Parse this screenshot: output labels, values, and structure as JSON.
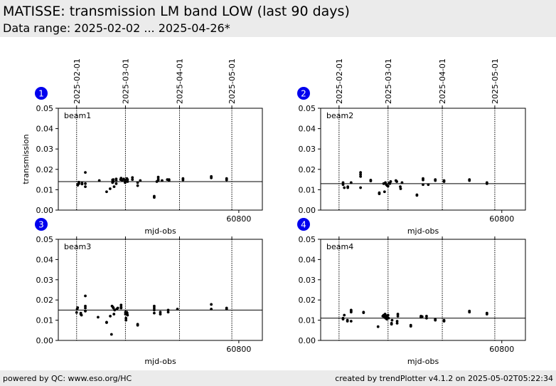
{
  "header": {
    "title": "MATISSE: transmission LM band LOW (last 90 days)",
    "subtitle": "Data range: 2025-02-02 ... 2025-04-26*"
  },
  "footer": {
    "left": "powered by QC: www.eso.org/HC",
    "right": "created by trendPlotter v4.1.2 on 2025-05-02T05:22:34"
  },
  "chart_data": [
    {
      "type": "scatter",
      "panel_number": "1",
      "label": "beam1",
      "xlabel": "mjd-obs",
      "ylabel": "transmission",
      "xlim": [
        60696.5,
        60813.5
      ],
      "ylim": [
        0.0,
        0.05
      ],
      "y_ticks": [
        "0.00",
        "0.01",
        "0.02",
        "0.03",
        "0.04",
        "0.05"
      ],
      "x_ticks": [
        60800
      ],
      "x_tick_labels": [
        "60800"
      ],
      "date_markers": [
        {
          "mjd": 60707,
          "label": "2025-02-01"
        },
        {
          "mjd": 60735,
          "label": "2025-03-01"
        },
        {
          "mjd": 60766,
          "label": "2025-04-01"
        },
        {
          "mjd": 60796,
          "label": "2025-05-01"
        }
      ],
      "reference_line": 0.014,
      "points": [
        [
          60707.6,
          0.0126
        ],
        [
          60707.6,
          0.0122
        ],
        [
          60708.3,
          0.0137
        ],
        [
          60708.3,
          0.013
        ],
        [
          60710.1,
          0.0128
        ],
        [
          60710.1,
          0.0132
        ],
        [
          60712.0,
          0.0185
        ],
        [
          60712.0,
          0.0115
        ],
        [
          60712.0,
          0.013
        ],
        [
          60720.0,
          0.0145
        ],
        [
          60724.2,
          0.009
        ],
        [
          60726.2,
          0.0105
        ],
        [
          60727.6,
          0.0148
        ],
        [
          60727.6,
          0.0138
        ],
        [
          60727.6,
          0.0135
        ],
        [
          60728.0,
          0.015
        ],
        [
          60728.0,
          0.014
        ],
        [
          60728.5,
          0.0115
        ],
        [
          60729.7,
          0.0153
        ],
        [
          60729.7,
          0.0145
        ],
        [
          60729.7,
          0.013
        ],
        [
          60732.2,
          0.015
        ],
        [
          60732.5,
          0.0157
        ],
        [
          60733.2,
          0.0145
        ],
        [
          60734.0,
          0.0153
        ],
        [
          60734.8,
          0.0145
        ],
        [
          60734.8,
          0.0135
        ],
        [
          60735.8,
          0.0155
        ],
        [
          60736.2,
          0.015
        ],
        [
          60736.2,
          0.014
        ],
        [
          60739.0,
          0.016
        ],
        [
          60739.0,
          0.015
        ],
        [
          60742.0,
          0.0135
        ],
        [
          60742.0,
          0.012
        ],
        [
          60743.5,
          0.0145
        ],
        [
          60751.5,
          0.0068
        ],
        [
          60751.5,
          0.0062
        ],
        [
          60753.0,
          0.014
        ],
        [
          60753.8,
          0.0162
        ],
        [
          60753.8,
          0.0152
        ],
        [
          60753.8,
          0.0145
        ],
        [
          60756.0,
          0.0145
        ],
        [
          60759.0,
          0.015
        ],
        [
          60760.0,
          0.015
        ],
        [
          60760.0,
          0.0145
        ],
        [
          60768.0,
          0.0155
        ],
        [
          60768.0,
          0.0148
        ],
        [
          60784.2,
          0.0165
        ],
        [
          60784.2,
          0.0158
        ],
        [
          60793.0,
          0.0155
        ],
        [
          60793.0,
          0.0148
        ]
      ]
    },
    {
      "type": "scatter",
      "panel_number": "2",
      "label": "beam2",
      "xlabel": "mjd-obs",
      "ylabel": "",
      "xlim": [
        60696.5,
        60813.5
      ],
      "ylim": [
        0.0,
        0.05
      ],
      "y_ticks": [
        "0.00",
        "0.01",
        "0.02",
        "0.03",
        "0.04",
        "0.05"
      ],
      "x_ticks": [
        60800
      ],
      "x_tick_labels": [
        "60800"
      ],
      "date_markers": [
        {
          "mjd": 60707,
          "label": "2025-02-01"
        },
        {
          "mjd": 60735,
          "label": "2025-03-01"
        },
        {
          "mjd": 60766,
          "label": "2025-04-01"
        },
        {
          "mjd": 60796,
          "label": "2025-05-01"
        }
      ],
      "reference_line": 0.013,
      "points": [
        [
          60709.3,
          0.0135
        ],
        [
          60709.3,
          0.0125
        ],
        [
          60710.0,
          0.011
        ],
        [
          60712.0,
          0.0115
        ],
        [
          60712.0,
          0.011
        ],
        [
          60713.9,
          0.0135
        ],
        [
          60719.3,
          0.0185
        ],
        [
          60719.3,
          0.0175
        ],
        [
          60719.3,
          0.0165
        ],
        [
          60719.3,
          0.011
        ],
        [
          60725.1,
          0.0147
        ],
        [
          60725.1,
          0.0143
        ],
        [
          60730.0,
          0.0085
        ],
        [
          60730.0,
          0.008
        ],
        [
          60732.5,
          0.013
        ],
        [
          60733.0,
          0.009
        ],
        [
          60733.5,
          0.0135
        ],
        [
          60734.0,
          0.0125
        ],
        [
          60734.5,
          0.012
        ],
        [
          60735.0,
          0.0118
        ],
        [
          60735.5,
          0.0132
        ],
        [
          60736.0,
          0.013
        ],
        [
          60736.5,
          0.014
        ],
        [
          60739.5,
          0.0145
        ],
        [
          60740.0,
          0.014
        ],
        [
          60742.0,
          0.0115
        ],
        [
          60742.2,
          0.0105
        ],
        [
          60743.0,
          0.0135
        ],
        [
          60751.5,
          0.0075
        ],
        [
          60751.5,
          0.0072
        ],
        [
          60755.0,
          0.0155
        ],
        [
          60755.0,
          0.0148
        ],
        [
          60755.0,
          0.0125
        ],
        [
          60758.0,
          0.0125
        ],
        [
          60762.0,
          0.015
        ],
        [
          60762.0,
          0.0145
        ],
        [
          60767.0,
          0.0145
        ],
        [
          60767.0,
          0.014
        ],
        [
          60781.5,
          0.015
        ],
        [
          60781.5,
          0.0145
        ],
        [
          60791.5,
          0.0135
        ],
        [
          60791.5,
          0.013
        ]
      ]
    },
    {
      "type": "scatter",
      "panel_number": "3",
      "label": "beam3",
      "xlabel": "mjd-obs",
      "ylabel": "",
      "xlim": [
        60696.5,
        60813.5
      ],
      "ylim": [
        0.0,
        0.05
      ],
      "y_ticks": [
        "0.00",
        "0.01",
        "0.02",
        "0.03",
        "0.04",
        "0.05"
      ],
      "x_ticks": [
        60800
      ],
      "x_tick_labels": [
        "60800"
      ],
      "date_markers": [
        {
          "mjd": 60707,
          "label": "2025-02-01"
        },
        {
          "mjd": 60735,
          "label": "2025-03-01"
        },
        {
          "mjd": 60766,
          "label": "2025-04-01"
        },
        {
          "mjd": 60796,
          "label": "2025-05-01"
        }
      ],
      "reference_line": 0.015,
      "points": [
        [
          60707.0,
          0.0138
        ],
        [
          60707.3,
          0.0155
        ],
        [
          60707.6,
          0.0162
        ],
        [
          60709.4,
          0.013
        ],
        [
          60709.4,
          0.0135
        ],
        [
          60709.8,
          0.0125
        ],
        [
          60712.0,
          0.022
        ],
        [
          60712.0,
          0.017
        ],
        [
          60712.0,
          0.016
        ],
        [
          60712.0,
          0.0145
        ],
        [
          60719.3,
          0.0115
        ],
        [
          60724.2,
          0.009
        ],
        [
          60724.2,
          0.0088
        ],
        [
          60726.3,
          0.012
        ],
        [
          60727.0,
          0.003
        ],
        [
          60727.3,
          0.017
        ],
        [
          60727.8,
          0.0165
        ],
        [
          60728.1,
          0.016
        ],
        [
          60728.4,
          0.013
        ],
        [
          60728.8,
          0.015
        ],
        [
          60730.0,
          0.0155
        ],
        [
          60730.6,
          0.016
        ],
        [
          60732.5,
          0.0175
        ],
        [
          60732.5,
          0.0165
        ],
        [
          60732.5,
          0.016
        ],
        [
          60735.0,
          0.014
        ],
        [
          60735.0,
          0.013
        ],
        [
          60735.3,
          0.011
        ],
        [
          60735.3,
          0.01
        ],
        [
          60735.7,
          0.014
        ],
        [
          60736.0,
          0.0135
        ],
        [
          60736.2,
          0.0125
        ],
        [
          60742.0,
          0.008
        ],
        [
          60742.0,
          0.0075
        ],
        [
          60751.5,
          0.017
        ],
        [
          60751.5,
          0.016
        ],
        [
          60751.5,
          0.015
        ],
        [
          60751.5,
          0.0135
        ],
        [
          60755.0,
          0.014
        ],
        [
          60755.0,
          0.013
        ],
        [
          60759.5,
          0.015
        ],
        [
          60759.5,
          0.014
        ],
        [
          60764.8,
          0.0155
        ],
        [
          60784.2,
          0.0178
        ],
        [
          60784.2,
          0.0155
        ],
        [
          60793.0,
          0.016
        ],
        [
          60793.0,
          0.0155
        ]
      ]
    },
    {
      "type": "scatter",
      "panel_number": "4",
      "label": "beam4",
      "xlabel": "mjd-obs",
      "ylabel": "",
      "xlim": [
        60696.5,
        60813.5
      ],
      "ylim": [
        0.0,
        0.05
      ],
      "y_ticks": [
        "0.00",
        "0.01",
        "0.02",
        "0.03",
        "0.04",
        "0.05"
      ],
      "x_ticks": [
        60800
      ],
      "x_tick_labels": [
        "60800"
      ],
      "date_markers": [
        {
          "mjd": 60707,
          "label": "2025-02-01"
        },
        {
          "mjd": 60735,
          "label": "2025-03-01"
        },
        {
          "mjd": 60766,
          "label": "2025-04-01"
        },
        {
          "mjd": 60796,
          "label": "2025-05-01"
        }
      ],
      "reference_line": 0.011,
      "points": [
        [
          60709.3,
          0.011
        ],
        [
          60709.3,
          0.0105
        ],
        [
          60710.0,
          0.0125
        ],
        [
          60711.8,
          0.01
        ],
        [
          60711.8,
          0.0095
        ],
        [
          60713.9,
          0.015
        ],
        [
          60713.9,
          0.0145
        ],
        [
          60713.9,
          0.014
        ],
        [
          60713.9,
          0.0095
        ],
        [
          60721.0,
          0.014
        ],
        [
          60721.0,
          0.0137
        ],
        [
          60729.3,
          0.0068
        ],
        [
          60732.0,
          0.012
        ],
        [
          60732.5,
          0.0125
        ],
        [
          60733.0,
          0.0115
        ],
        [
          60733.3,
          0.013
        ],
        [
          60733.6,
          0.011
        ],
        [
          60734.0,
          0.0122
        ],
        [
          60734.3,
          0.0105
        ],
        [
          60734.6,
          0.0118
        ],
        [
          60735.0,
          0.0125
        ],
        [
          60735.3,
          0.011
        ],
        [
          60737.0,
          0.0085
        ],
        [
          60737.0,
          0.008
        ],
        [
          60737.3,
          0.01
        ],
        [
          60740.2,
          0.0095
        ],
        [
          60740.2,
          0.0085
        ],
        [
          60740.6,
          0.013
        ],
        [
          60740.6,
          0.012
        ],
        [
          60748.0,
          0.0075
        ],
        [
          60748.0,
          0.007
        ],
        [
          60753.8,
          0.012
        ],
        [
          60753.8,
          0.0115
        ],
        [
          60754.5,
          0.0118
        ],
        [
          60757.0,
          0.012
        ],
        [
          60757.0,
          0.011
        ],
        [
          60762.0,
          0.01
        ],
        [
          60762.0,
          0.0105
        ],
        [
          60767.0,
          0.01
        ],
        [
          60767.0,
          0.0095
        ],
        [
          60781.5,
          0.0145
        ],
        [
          60781.5,
          0.014
        ],
        [
          60791.5,
          0.0135
        ],
        [
          60791.5,
          0.013
        ]
      ]
    }
  ]
}
